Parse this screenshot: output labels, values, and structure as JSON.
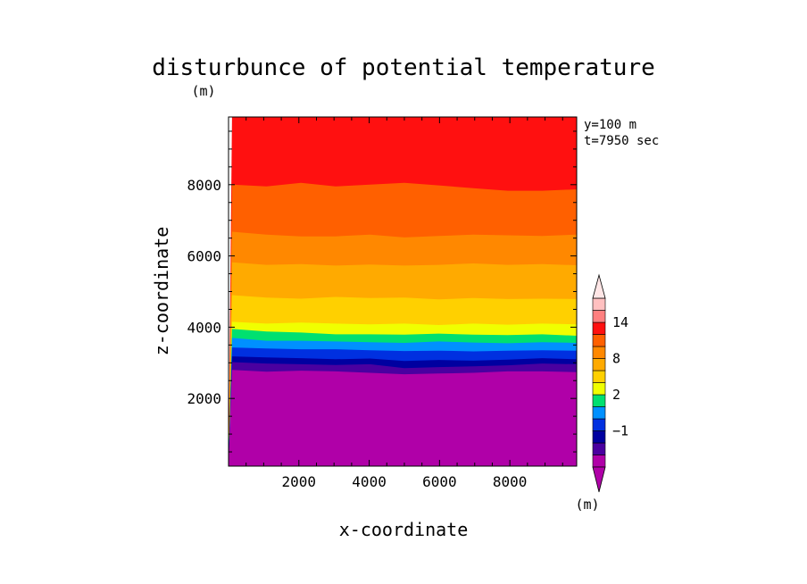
{
  "chart_data": {
    "type": "heatmap",
    "title": "disturbunce of potential temperature",
    "units_label": "(m)",
    "xlabel": "x-coordinate",
    "ylabel": "z-coordinate",
    "annotation": [
      "y=100 m",
      "t=7950 sec"
    ],
    "xlim": [
      0,
      9900
    ],
    "ylim": [
      100,
      9900
    ],
    "xticks": [
      2000,
      4000,
      6000,
      8000
    ],
    "yticks": [
      2000,
      4000,
      6000,
      8000
    ],
    "grid": false,
    "colorbar": {
      "colors": [
        "#b000a8",
        "#4a00a0",
        "#0000a0",
        "#0030e0",
        "#0090ff",
        "#00e070",
        "#f0ff00",
        "#ffd000",
        "#ffaa00",
        "#ff8800",
        "#ff6000",
        "#ff1010",
        "#ff8080",
        "#ffc0c0"
      ],
      "labels": [
        {
          "after_band": 3,
          "text": "−1"
        },
        {
          "after_band": 6,
          "text": "2"
        },
        {
          "after_band": 9,
          "text": "8"
        },
        {
          "after_band": 12,
          "text": "14"
        }
      ],
      "units_label": "(m)"
    },
    "layers": [
      {
        "color": "#ff1010",
        "z": [
          9900,
          9900,
          9900,
          9900,
          9900,
          9900,
          9900,
          9900,
          9900,
          9900,
          9900
        ]
      },
      {
        "color": "#ff6000",
        "z": [
          8000,
          7950,
          8050,
          7950,
          8000,
          8050,
          7980,
          7900,
          7830,
          7830,
          7870
        ]
      },
      {
        "color": "#ff8800",
        "z": [
          6680,
          6600,
          6550,
          6550,
          6600,
          6520,
          6560,
          6600,
          6580,
          6560,
          6600
        ]
      },
      {
        "color": "#ffaa00",
        "z": [
          5820,
          5750,
          5770,
          5730,
          5760,
          5730,
          5750,
          5790,
          5750,
          5770,
          5740
        ]
      },
      {
        "color": "#ffd000",
        "z": [
          4900,
          4830,
          4800,
          4850,
          4820,
          4830,
          4780,
          4820,
          4790,
          4800,
          4790
        ]
      },
      {
        "color": "#f0ff00",
        "z": [
          4150,
          4100,
          4130,
          4100,
          4080,
          4100,
          4060,
          4100,
          4070,
          4100,
          4080
        ]
      },
      {
        "color": "#00e070",
        "z": [
          3950,
          3880,
          3850,
          3800,
          3800,
          3790,
          3820,
          3790,
          3780,
          3800,
          3760
        ]
      },
      {
        "color": "#0090ff",
        "z": [
          3700,
          3620,
          3620,
          3600,
          3580,
          3560,
          3600,
          3570,
          3550,
          3580,
          3560
        ]
      },
      {
        "color": "#0030e0",
        "z": [
          3430,
          3400,
          3380,
          3380,
          3350,
          3330,
          3340,
          3320,
          3340,
          3350,
          3340
        ]
      },
      {
        "color": "#0000a0",
        "z": [
          3180,
          3150,
          3130,
          3100,
          3120,
          3050,
          3080,
          3060,
          3090,
          3130,
          3100
        ]
      },
      {
        "color": "#4a00a0",
        "z": [
          3020,
          2980,
          2960,
          2940,
          2960,
          2850,
          2880,
          2900,
          2930,
          2980,
          2960
        ]
      },
      {
        "color": "#b000a8",
        "z": [
          2800,
          2750,
          2780,
          2760,
          2720,
          2680,
          2700,
          2720,
          2760,
          2760,
          2740
        ]
      }
    ],
    "layer_x": [
      100,
      1080,
      2060,
      3040,
      4020,
      5000,
      5980,
      6960,
      7940,
      8920,
      9900
    ]
  }
}
